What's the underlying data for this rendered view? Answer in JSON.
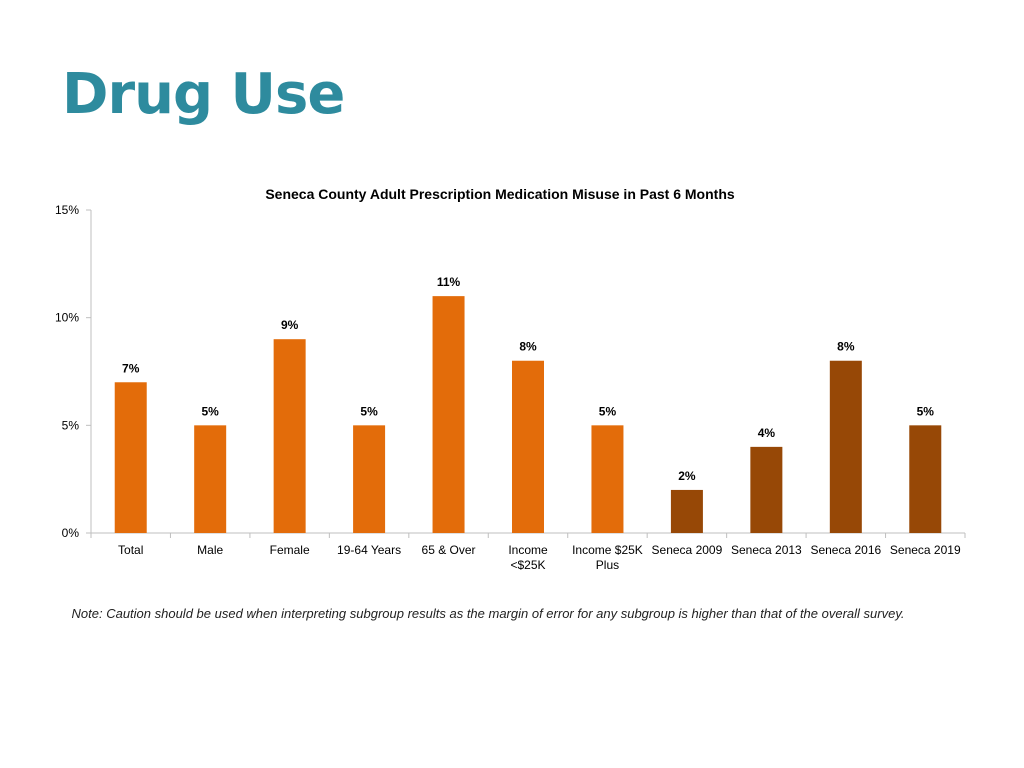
{
  "slide": {
    "title": "Drug Use",
    "note": "Note: Caution should be used when interpreting subgroup results as the margin of error for any subgroup is higher than that of the overall survey."
  },
  "chart_data": {
    "type": "bar",
    "title": "Seneca County Adult Prescription Medication Misuse in Past 6 Months",
    "xlabel": "",
    "ylabel": "",
    "categories": [
      [
        "Total"
      ],
      [
        "Male"
      ],
      [
        "Female"
      ],
      [
        "19-64 Years"
      ],
      [
        "65 & Over"
      ],
      [
        "Income",
        "<$25K"
      ],
      [
        "Income $25K",
        "Plus"
      ],
      [
        "Seneca 2009"
      ],
      [
        "Seneca 2013"
      ],
      [
        "Seneca 2016"
      ],
      [
        "Seneca 2019"
      ]
    ],
    "values": [
      7,
      5,
      9,
      5,
      11,
      8,
      5,
      2,
      4,
      8,
      5
    ],
    "value_labels": [
      "7%",
      "5%",
      "9%",
      "5%",
      "11%",
      "8%",
      "5%",
      "2%",
      "4%",
      "8%",
      "5%"
    ],
    "ylim": [
      0,
      15
    ],
    "yticks": [
      0,
      5,
      10,
      15
    ],
    "ytick_labels": [
      "0%",
      "5%",
      "10%",
      "15%"
    ],
    "grid": false,
    "legend": "none",
    "colors": {
      "subgroup": "#E36C0A",
      "trend": "#974806"
    },
    "trend_from_index": 7
  }
}
